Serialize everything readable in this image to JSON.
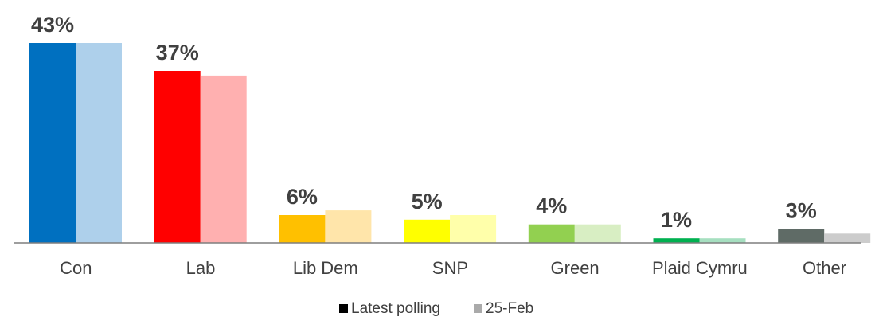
{
  "chart_data": {
    "type": "bar",
    "categories": [
      "Con",
      "Lab",
      "Lib Dem",
      "SNP",
      "Green",
      "Plaid Cymru",
      "Other"
    ],
    "series": [
      {
        "name": "Latest polling",
        "values": [
          43,
          37,
          6,
          5,
          4,
          1,
          3
        ],
        "labels": [
          "43%",
          "37%",
          "6%",
          "5%",
          "4%",
          "1%",
          "3%"
        ],
        "colors": [
          "#0070C0",
          "#FF0000",
          "#FFC000",
          "#FFFF00",
          "#92D050",
          "#00B050",
          "#5F6B66"
        ]
      },
      {
        "name": "25-Feb",
        "values": [
          43,
          36,
          7,
          6,
          4,
          1,
          2
        ],
        "colors": [
          "#AED0EB",
          "#FFB0B0",
          "#FFE5AA",
          "#FFFFAA",
          "#D8EEC3",
          "#A6DFC0",
          "#CCCCCC"
        ]
      }
    ],
    "ylim": [
      0,
      43
    ],
    "grid": false,
    "legend": {
      "position": "bottom",
      "entries": [
        {
          "label": "Latest polling",
          "color": "#000000"
        },
        {
          "label": "25-Feb",
          "color": "#AAAAAA"
        }
      ]
    },
    "axis_color": "#7F7F7F",
    "text_color": "#404040"
  }
}
